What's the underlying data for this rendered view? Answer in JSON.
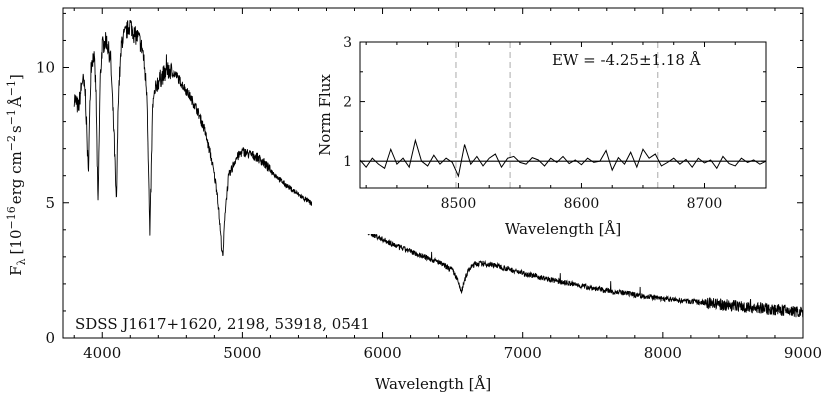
{
  "chart_data": [
    {
      "type": "line",
      "title": "",
      "xlabel": "Wavelength [Å]",
      "ylabel_parts": {
        "main": "F",
        "sub": "λ",
        "unit_open": "[10",
        "exp1": "−16",
        "unit_mid": "erg cm",
        "exp2": "−2",
        "unit_s": "s",
        "exp3": "−1",
        "unit_a": "Å",
        "exp4": "−1",
        "unit_close": "]"
      },
      "xlim": [
        3720,
        9000
      ],
      "ylim": [
        0,
        12.2
      ],
      "xticks": [
        4000,
        5000,
        6000,
        7000,
        8000,
        9000
      ],
      "xtick_labels": [
        "4000",
        "5000",
        "6000",
        "7000",
        "8000",
        "9000"
      ],
      "yticks": [
        0,
        5,
        10
      ],
      "ytick_labels": [
        "0",
        "5",
        "10"
      ],
      "annotation": "SDSS J1617+1620, 2198, 53918, 0541",
      "series": [
        {
          "name": "spectrum",
          "x": [
            3800,
            3830,
            3860,
            3880,
            3900,
            3920,
            3940,
            3955,
            3970,
            3985,
            4000,
            4030,
            4060,
            4085,
            4101,
            4115,
            4140,
            4170,
            4200,
            4230,
            4260,
            4290,
            4320,
            4340,
            4360,
            4390,
            4430,
            4480,
            4530,
            4580,
            4630,
            4680,
            4730,
            4780,
            4820,
            4850,
            4861,
            4875,
            4900,
            4950,
            5000,
            5050,
            5100,
            5150,
            5200,
            5300,
            5400,
            5500,
            5600,
            5700,
            5800,
            5900,
            6000,
            6100,
            6200,
            6300,
            6400,
            6450,
            6500,
            6530,
            6563,
            6590,
            6620,
            6660,
            6700,
            6800,
            6900,
            7000,
            7200,
            7400,
            7600,
            7800,
            8000,
            8200,
            8400,
            8600,
            8800,
            9000
          ],
          "y": [
            8.9,
            8.5,
            9.6,
            9.0,
            6.1,
            10.1,
            10.5,
            9.2,
            4.8,
            9.5,
            10.8,
            11.0,
            10.3,
            7.4,
            4.8,
            9.0,
            11.0,
            11.3,
            11.6,
            11.2,
            11.1,
            10.6,
            9.0,
            3.7,
            8.6,
            9.4,
            9.7,
            9.9,
            9.7,
            9.3,
            8.9,
            8.4,
            7.7,
            6.6,
            5.4,
            3.5,
            2.9,
            4.6,
            5.9,
            6.6,
            6.9,
            6.8,
            6.7,
            6.5,
            6.2,
            5.7,
            5.3,
            4.95,
            4.65,
            4.4,
            4.15,
            3.9,
            3.65,
            3.4,
            3.2,
            3.0,
            2.8,
            2.65,
            2.5,
            2.2,
            1.7,
            2.2,
            2.55,
            2.75,
            2.75,
            2.7,
            2.55,
            2.4,
            2.15,
            1.95,
            1.75,
            1.6,
            1.45,
            1.35,
            1.25,
            1.15,
            1.05,
            0.95
          ],
          "color": "#000000"
        }
      ]
    },
    {
      "type": "line",
      "title": "",
      "xlabel": "Wavelength [Å]",
      "ylabel": "Norm Flux",
      "xlim": [
        8420,
        8750
      ],
      "ylim": [
        0.55,
        3.0
      ],
      "xticks": [
        8500,
        8600,
        8700
      ],
      "xtick_labels": [
        "8500",
        "8600",
        "8700"
      ],
      "yticks": [
        1,
        2,
        3
      ],
      "ytick_labels": [
        "1",
        "2",
        "3"
      ],
      "reference_lines": [
        8498,
        8542,
        8662
      ],
      "annotation": "EW = -4.25±1.18 Å",
      "series": [
        {
          "name": "normalized flux",
          "x": [
            8420,
            8425,
            8430,
            8435,
            8440,
            8445,
            8450,
            8455,
            8460,
            8465,
            8470,
            8475,
            8480,
            8485,
            8490,
            8495,
            8500,
            8505,
            8510,
            8515,
            8520,
            8525,
            8530,
            8535,
            8540,
            8545,
            8550,
            8555,
            8560,
            8565,
            8570,
            8575,
            8580,
            8585,
            8590,
            8595,
            8600,
            8605,
            8610,
            8615,
            8620,
            8625,
            8630,
            8635,
            8640,
            8645,
            8650,
            8655,
            8660,
            8665,
            8670,
            8675,
            8680,
            8685,
            8690,
            8695,
            8700,
            8705,
            8710,
            8715,
            8720,
            8725,
            8730,
            8735,
            8740,
            8745,
            8750
          ],
          "y": [
            1.02,
            0.9,
            1.05,
            0.95,
            0.88,
            1.2,
            0.95,
            1.05,
            0.9,
            1.35,
            1.0,
            0.92,
            1.1,
            0.95,
            1.05,
            0.98,
            0.75,
            1.28,
            0.95,
            1.08,
            0.92,
            1.05,
            1.12,
            0.9,
            1.05,
            1.08,
            0.98,
            0.95,
            1.06,
            1.02,
            0.92,
            1.05,
            0.98,
            1.08,
            0.96,
            1.02,
            0.94,
            1.05,
            0.98,
            1.0,
            1.18,
            0.85,
            1.06,
            0.95,
            1.15,
            0.9,
            1.2,
            1.05,
            1.12,
            0.92,
            0.98,
            1.05,
            0.95,
            1.03,
            0.9,
            1.05,
            0.97,
            1.02,
            0.88,
            1.08,
            0.96,
            0.92,
            1.05,
            0.98,
            1.02,
            0.95,
            1.0
          ],
          "color": "#000000"
        },
        {
          "name": "continuum",
          "x": [
            8420,
            8750
          ],
          "y": [
            1.0,
            1.0
          ],
          "color": "#000000"
        }
      ]
    }
  ]
}
